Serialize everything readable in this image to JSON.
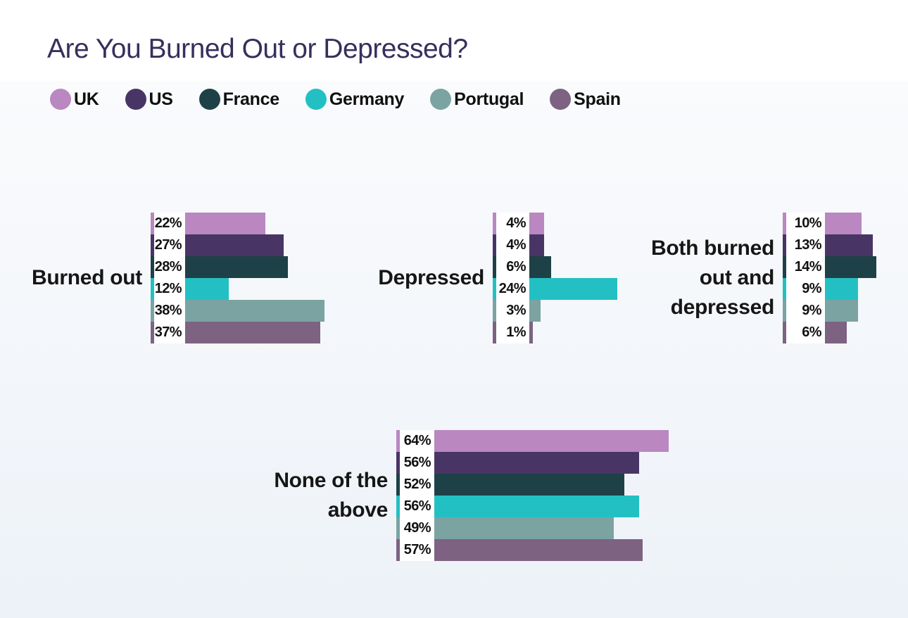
{
  "title": "Are You Burned Out or Depressed?",
  "legend": {
    "items": [
      {
        "label": "UK",
        "color": "#ba87c1"
      },
      {
        "label": "US",
        "color": "#483565"
      },
      {
        "label": "France",
        "color": "#1e4147"
      },
      {
        "label": "Germany",
        "color": "#23c0c3"
      },
      {
        "label": "Portugal",
        "color": "#7ba3a2"
      },
      {
        "label": "Spain",
        "color": "#7d6282"
      }
    ]
  },
  "chart_data": {
    "type": "bar",
    "orientation": "horizontal",
    "title": "Are You Burned Out or Depressed?",
    "value_suffix": "%",
    "legend_position": "top",
    "gridlines": false,
    "axis": {
      "min": 0,
      "max": 70
    },
    "series": [
      "UK",
      "US",
      "France",
      "Germany",
      "Portugal",
      "Spain"
    ],
    "series_colors": [
      "#ba87c1",
      "#483565",
      "#1e4147",
      "#23c0c3",
      "#7ba3a2",
      "#7d6282"
    ],
    "groups": [
      {
        "category": "Burned out",
        "label_lines": [
          "Burned out"
        ],
        "values": [
          22,
          27,
          28,
          12,
          38,
          37
        ],
        "value_labels": [
          "22%",
          "27%",
          "28%",
          "12%",
          "38%",
          "37%"
        ]
      },
      {
        "category": "Depressed",
        "label_lines": [
          "Depressed"
        ],
        "values": [
          4,
          4,
          6,
          24,
          3,
          1
        ],
        "value_labels": [
          "4%",
          "4%",
          "6%",
          "24%",
          "3%",
          "1%"
        ]
      },
      {
        "category": "Both burned out and depressed",
        "label_lines": [
          "Both burned",
          "out and",
          "depressed"
        ],
        "values": [
          10,
          13,
          14,
          9,
          9,
          6
        ],
        "value_labels": [
          "10%",
          "13%",
          "14%",
          "9%",
          "9%",
          "6%"
        ]
      },
      {
        "category": "None of the above",
        "label_lines": [
          "None of the",
          "above"
        ],
        "values": [
          64,
          56,
          52,
          56,
          49,
          57
        ],
        "value_labels": [
          "64%",
          "56%",
          "52%",
          "56%",
          "49%",
          "57%"
        ]
      }
    ]
  }
}
